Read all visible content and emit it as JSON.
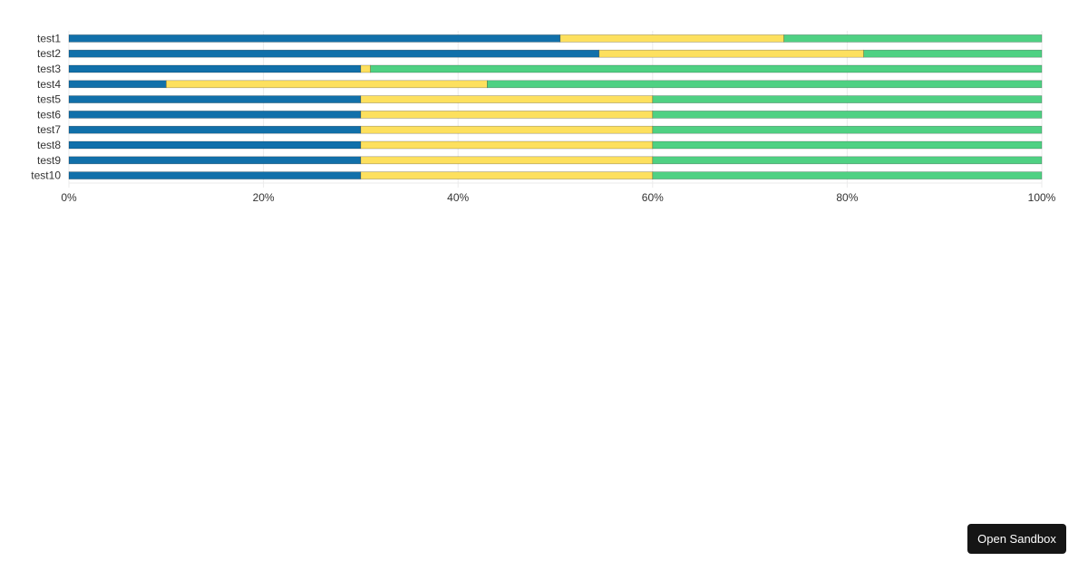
{
  "chart_data": {
    "type": "bar",
    "orientation": "horizontal",
    "stacked": "percent",
    "categories": [
      "test1",
      "test2",
      "test3",
      "test4",
      "test5",
      "test6",
      "test7",
      "test8",
      "test9",
      "test10"
    ],
    "series": [
      {
        "color": "#1170aa",
        "values": [
          50.5,
          54.5,
          30,
          10,
          30,
          30,
          30,
          30,
          30,
          30
        ]
      },
      {
        "color": "#fde05e",
        "values": [
          23,
          27.2,
          1,
          33,
          30,
          30,
          30,
          30,
          30,
          30
        ]
      },
      {
        "color": "#4fd183",
        "values": [
          26.5,
          18.3,
          69,
          57,
          40,
          40,
          40,
          40,
          40,
          40
        ]
      }
    ],
    "xlim": [
      0,
      100
    ],
    "xticks": [
      "0%",
      "20%",
      "40%",
      "60%",
      "80%",
      "100%"
    ],
    "grid": "vertical",
    "legend": "none"
  },
  "sandbox_button": {
    "label": "Open Sandbox"
  }
}
